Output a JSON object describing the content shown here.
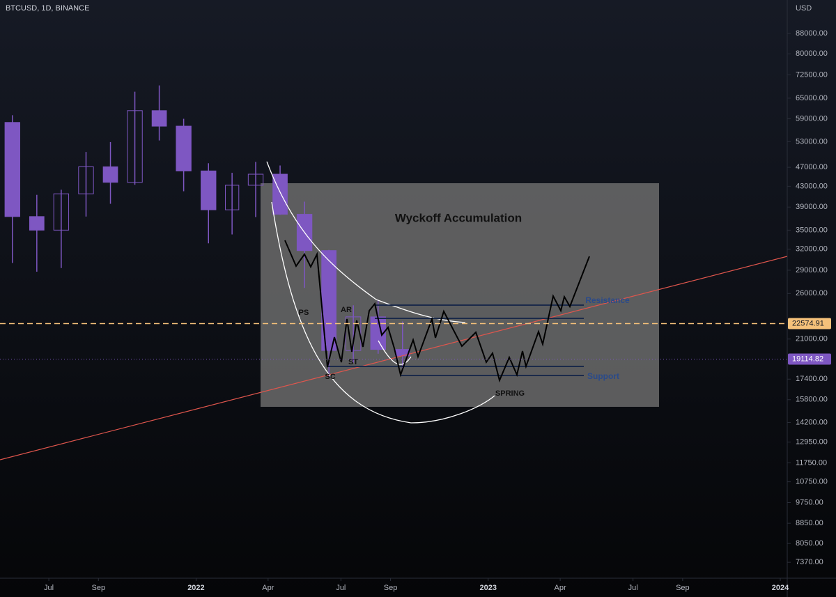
{
  "chart_data": {
    "type": "candlestick",
    "title": "BTCUSD, 1D, BINANCE",
    "y_axis_label": "USD",
    "log_scale": true,
    "color": "#7e57c2",
    "x": [
      "2021-05",
      "2021-06",
      "2021-07",
      "2021-08",
      "2021-09",
      "2021-10",
      "2021-11",
      "2021-12",
      "2022-01",
      "2022-02",
      "2022-03",
      "2022-04",
      "2022-05",
      "2022-06",
      "2022-07",
      "2022-08",
      "2022-09"
    ],
    "open": [
      58000,
      37300,
      35000,
      41500,
      47100,
      43800,
      61300,
      57000,
      46200,
      38500,
      43200,
      45500,
      37700,
      31800,
      19900,
      23300,
      20000
    ],
    "high": [
      60000,
      41300,
      42300,
      50500,
      52900,
      67000,
      69000,
      59000,
      47900,
      45800,
      48200,
      47400,
      40000,
      31900,
      24600,
      25200,
      22800
    ],
    "low": [
      30000,
      28800,
      29300,
      37300,
      39600,
      43300,
      53300,
      42000,
      32900,
      34300,
      37200,
      37600,
      26700,
      17600,
      18800,
      19600,
      18200
    ],
    "close": [
      37300,
      35000,
      41500,
      47100,
      43800,
      61300,
      57000,
      46200,
      38500,
      43200,
      45500,
      37700,
      31800,
      19900,
      23300,
      20000,
      19400
    ],
    "xlim": [
      "2021-05",
      "2024-01"
    ],
    "xticks": [
      {
        "value": "2021-07",
        "label": "Jul"
      },
      {
        "value": "2021-09",
        "label": "Sep"
      },
      {
        "value": "2022-01",
        "label": "2022"
      },
      {
        "value": "2022-04",
        "label": "Apr"
      },
      {
        "value": "2022-07",
        "label": "Jul"
      },
      {
        "value": "2022-09",
        "label": "Sep"
      },
      {
        "value": "2023-01",
        "label": "2023"
      },
      {
        "value": "2023-04",
        "label": "Apr"
      },
      {
        "value": "2023-07",
        "label": "Jul"
      },
      {
        "value": "2023-09",
        "label": "Sep"
      },
      {
        "value": "2024-01",
        "label": "2024"
      }
    ],
    "ylim": [
      6840,
      103000
    ],
    "yticks": [
      {
        "value": 88000,
        "label": "88000.00"
      },
      {
        "value": 80000,
        "label": "80000.00"
      },
      {
        "value": 72500,
        "label": "72500.00"
      },
      {
        "value": 65000,
        "label": "65000.00"
      },
      {
        "value": 59000,
        "label": "59000.00"
      },
      {
        "value": 53000,
        "label": "53000.00"
      },
      {
        "value": 47000,
        "label": "47000.00"
      },
      {
        "value": 43000,
        "label": "43000.00"
      },
      {
        "value": 39000,
        "label": "39000.00"
      },
      {
        "value": 35000,
        "label": "35000.00"
      },
      {
        "value": 32000,
        "label": "32000.00"
      },
      {
        "value": 29000,
        "label": "29000.00"
      },
      {
        "value": 26000,
        "label": "26000.00"
      },
      {
        "value": 21000,
        "label": "21000.00"
      },
      {
        "value": 17400,
        "label": "17400.00"
      },
      {
        "value": 15800,
        "label": "15800.00"
      },
      {
        "value": 14200,
        "label": "14200.00"
      },
      {
        "value": 12950,
        "label": "12950.00"
      },
      {
        "value": 11750,
        "label": "11750.00"
      },
      {
        "value": 10750,
        "label": "10750.00"
      },
      {
        "value": 9750,
        "label": "9750.00"
      },
      {
        "value": 8850,
        "label": "8850.00"
      },
      {
        "value": 8050,
        "label": "8050.00"
      },
      {
        "value": 7370,
        "label": "7370.00"
      }
    ],
    "price_lines": [
      {
        "value": 22574.91,
        "color": "#f5c17a"
      },
      {
        "value": 19114.82,
        "color": "#7e57c2"
      }
    ],
    "annotations": [
      "Wyckoff Accumulation",
      "PS",
      "AR",
      "ST",
      "SC",
      "SPRING",
      "Resistance",
      "Support"
    ]
  }
}
